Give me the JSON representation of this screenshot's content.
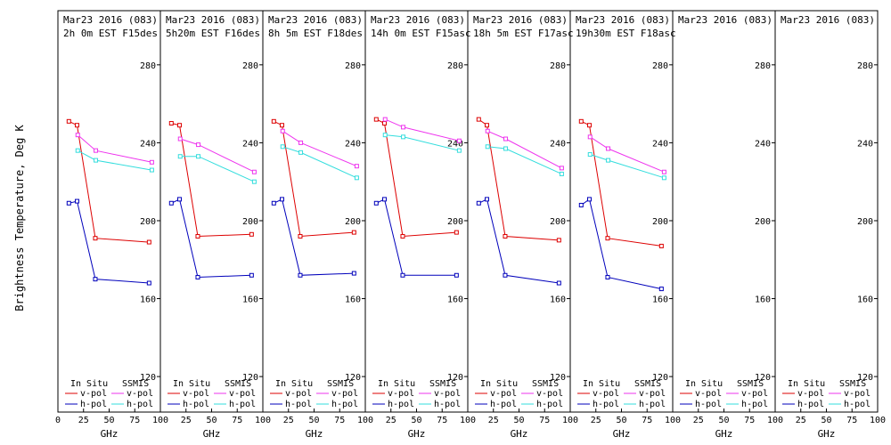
{
  "ylabel": "Brightness Temperature, Deg K",
  "xlabel": "GHz",
  "legend": {
    "insitu_label": "In Situ",
    "ssmis_label": "SSMIS",
    "vpol_label": "v-pol",
    "hpol_label": "h-pol"
  },
  "colors": {
    "insitu_v": "#dd0000",
    "insitu_h": "#0000bb",
    "ssmis_v": "#ee33ee",
    "ssmis_h": "#33dddd"
  },
  "x_ticks": [
    "0",
    "25",
    "50",
    "75",
    "100"
  ],
  "y_ticks": [
    "120",
    "160",
    "200",
    "240",
    "280"
  ],
  "chart_data": [
    {
      "type": "line",
      "title": "Mar23 2016 (083)",
      "subtitle": "2h 0m EST F15des",
      "xlim": [
        0,
        100
      ],
      "ylim": [
        110,
        295
      ],
      "series": [
        {
          "name": "In Situ v-pol",
          "x": [
            10.7,
            18.7,
            36.5,
            89
          ],
          "y": [
            251,
            249,
            191,
            189
          ]
        },
        {
          "name": "In Situ h-pol",
          "x": [
            10.7,
            18.7,
            36.5,
            89
          ],
          "y": [
            209,
            210,
            170,
            168
          ]
        },
        {
          "name": "SSMIS v-pol",
          "x": [
            19.35,
            37,
            91.655
          ],
          "y": [
            244,
            236,
            230
          ]
        },
        {
          "name": "SSMIS h-pol",
          "x": [
            19.35,
            37,
            91.655
          ],
          "y": [
            236,
            231,
            226
          ]
        }
      ]
    },
    {
      "type": "line",
      "title": "Mar23 2016 (083)",
      "subtitle": "5h20m EST F16des",
      "xlim": [
        0,
        100
      ],
      "ylim": [
        110,
        295
      ],
      "series": [
        {
          "name": "In Situ v-pol",
          "x": [
            10.7,
            18.7,
            36.5,
            89
          ],
          "y": [
            250,
            249,
            192,
            193
          ]
        },
        {
          "name": "In Situ h-pol",
          "x": [
            10.7,
            18.7,
            36.5,
            89
          ],
          "y": [
            209,
            211,
            171,
            172
          ]
        },
        {
          "name": "SSMIS v-pol",
          "x": [
            19.35,
            37,
            91.655
          ],
          "y": [
            242,
            239,
            225
          ]
        },
        {
          "name": "SSMIS h-pol",
          "x": [
            19.35,
            37,
            91.655
          ],
          "y": [
            233,
            233,
            220
          ]
        }
      ]
    },
    {
      "type": "line",
      "title": "Mar23 2016 (083)",
      "subtitle": "8h 5m EST F18des",
      "xlim": [
        0,
        100
      ],
      "ylim": [
        110,
        295
      ],
      "series": [
        {
          "name": "In Situ v-pol",
          "x": [
            10.7,
            18.7,
            36.5,
            89
          ],
          "y": [
            251,
            249,
            192,
            194
          ]
        },
        {
          "name": "In Situ h-pol",
          "x": [
            10.7,
            18.7,
            36.5,
            89
          ],
          "y": [
            209,
            211,
            172,
            173
          ]
        },
        {
          "name": "SSMIS v-pol",
          "x": [
            19.35,
            37,
            91.655
          ],
          "y": [
            246,
            240,
            228
          ]
        },
        {
          "name": "SSMIS h-pol",
          "x": [
            19.35,
            37,
            91.655
          ],
          "y": [
            238,
            235,
            222
          ]
        }
      ]
    },
    {
      "type": "line",
      "title": "Mar23 2016 (083)",
      "subtitle": "14h 0m EST F15asc",
      "xlim": [
        0,
        100
      ],
      "ylim": [
        110,
        295
      ],
      "series": [
        {
          "name": "In Situ v-pol",
          "x": [
            10.7,
            18.7,
            36.5,
            89
          ],
          "y": [
            252,
            250,
            192,
            194
          ]
        },
        {
          "name": "In Situ h-pol",
          "x": [
            10.7,
            18.7,
            36.5,
            89
          ],
          "y": [
            209,
            211,
            172,
            172
          ]
        },
        {
          "name": "SSMIS v-pol",
          "x": [
            19.35,
            37,
            91.655
          ],
          "y": [
            252,
            248,
            241
          ]
        },
        {
          "name": "SSMIS h-pol",
          "x": [
            19.35,
            37,
            91.655
          ],
          "y": [
            244,
            243,
            236
          ]
        }
      ]
    },
    {
      "type": "line",
      "title": "Mar23 2016 (083)",
      "subtitle": "18h 5m EST F17asc",
      "xlim": [
        0,
        100
      ],
      "ylim": [
        110,
        295
      ],
      "series": [
        {
          "name": "In Situ v-pol",
          "x": [
            10.7,
            18.7,
            36.5,
            89
          ],
          "y": [
            252,
            249,
            192,
            190
          ]
        },
        {
          "name": "In Situ h-pol",
          "x": [
            10.7,
            18.7,
            36.5,
            89
          ],
          "y": [
            209,
            211,
            172,
            168
          ]
        },
        {
          "name": "SSMIS v-pol",
          "x": [
            19.35,
            37,
            91.655
          ],
          "y": [
            246,
            242,
            227
          ]
        },
        {
          "name": "SSMIS h-pol",
          "x": [
            19.35,
            37,
            91.655
          ],
          "y": [
            238,
            237,
            224
          ]
        }
      ]
    },
    {
      "type": "line",
      "title": "Mar23 2016 (083)",
      "subtitle": "19h30m EST F18asc",
      "xlim": [
        0,
        100
      ],
      "ylim": [
        110,
        295
      ],
      "series": [
        {
          "name": "In Situ v-pol",
          "x": [
            10.7,
            18.7,
            36.5,
            89
          ],
          "y": [
            251,
            249,
            191,
            187
          ]
        },
        {
          "name": "In Situ h-pol",
          "x": [
            10.7,
            18.7,
            36.5,
            89
          ],
          "y": [
            208,
            211,
            171,
            165
          ]
        },
        {
          "name": "SSMIS v-pol",
          "x": [
            19.35,
            37,
            91.655
          ],
          "y": [
            243,
            237,
            225
          ]
        },
        {
          "name": "SSMIS h-pol",
          "x": [
            19.35,
            37,
            91.655
          ],
          "y": [
            234,
            231,
            222
          ]
        }
      ]
    },
    {
      "type": "line",
      "title": "Mar23 2016 (083)",
      "subtitle": "",
      "xlim": [
        0,
        100
      ],
      "ylim": [
        110,
        295
      ],
      "series": []
    },
    {
      "type": "line",
      "title": "Mar23 2016 (083)",
      "subtitle": "",
      "xlim": [
        0,
        100
      ],
      "ylim": [
        110,
        295
      ],
      "series": []
    }
  ]
}
